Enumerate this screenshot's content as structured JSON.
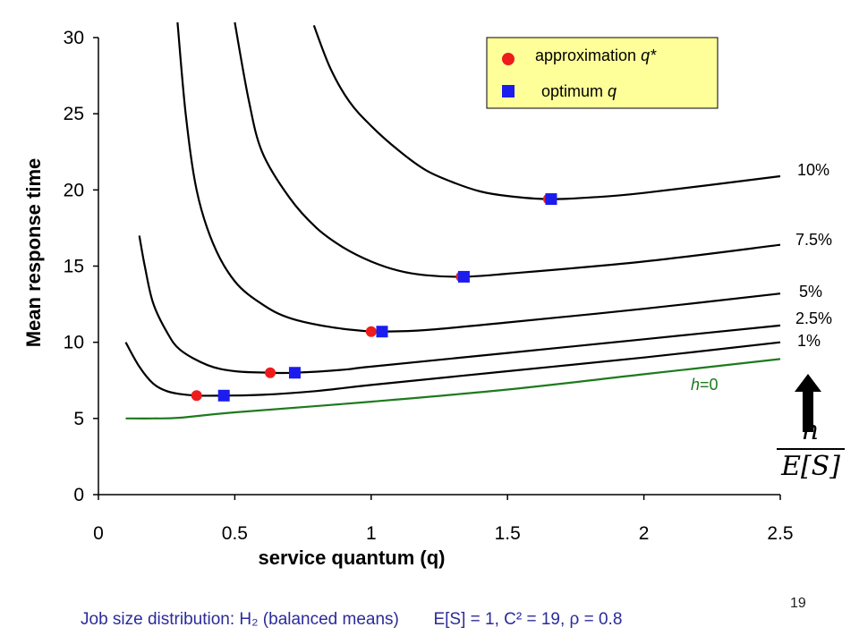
{
  "chart_data": {
    "type": "line",
    "xlabel": "service quantum (q)",
    "ylabel": "Mean response time",
    "xlim": [
      0,
      2.5
    ],
    "ylim": [
      0,
      30
    ],
    "xticks": [
      "0",
      "0.5",
      "1",
      "1.5",
      "2",
      "2.5"
    ],
    "yticks": [
      "0",
      "5",
      "10",
      "15",
      "20",
      "25",
      "30"
    ],
    "grid": false,
    "legend_position": "top-right",
    "legend": [
      "approximation q*",
      "optimum q"
    ],
    "series": [
      {
        "name": "h=0",
        "color": "#1e7a1e",
        "x": [
          0.1,
          0.2,
          0.3,
          0.5,
          1.0,
          1.5,
          2.0,
          2.5
        ],
        "y": [
          5.0,
          5.0,
          5.05,
          5.4,
          6.1,
          6.9,
          7.9,
          8.9
        ]
      },
      {
        "name": "1%",
        "color": "#000000",
        "x": [
          0.1,
          0.15,
          0.2,
          0.25,
          0.3,
          0.36,
          0.46,
          0.6,
          0.8,
          1.0,
          1.5,
          2.0,
          2.5
        ],
        "y": [
          10.0,
          8.4,
          7.3,
          6.8,
          6.6,
          6.5,
          6.5,
          6.55,
          6.8,
          7.2,
          8.1,
          9.0,
          10.0
        ]
      },
      {
        "name": "2.5%",
        "color": "#000000",
        "x": [
          0.15,
          0.17,
          0.2,
          0.25,
          0.3,
          0.4,
          0.5,
          0.63,
          0.72,
          0.9,
          1.0,
          1.5,
          2.0,
          2.5
        ],
        "y": [
          17.0,
          15.0,
          12.6,
          10.7,
          9.5,
          8.5,
          8.1,
          8.0,
          8.0,
          8.2,
          8.4,
          9.3,
          10.2,
          11.1
        ]
      },
      {
        "name": "5%",
        "color": "#000000",
        "x": [
          0.29,
          0.32,
          0.36,
          0.42,
          0.5,
          0.6,
          0.7,
          0.85,
          1.0,
          1.04,
          1.2,
          1.5,
          2.0,
          2.5
        ],
        "y": [
          31.0,
          25.0,
          20.0,
          16.5,
          14.0,
          12.5,
          11.6,
          11.0,
          10.7,
          10.7,
          10.8,
          11.3,
          12.2,
          13.2
        ]
      },
      {
        "name": "7.5%",
        "color": "#000000",
        "x": [
          0.5,
          0.55,
          0.6,
          0.7,
          0.8,
          0.9,
          1.0,
          1.1,
          1.2,
          1.34,
          1.5,
          2.0,
          2.5
        ],
        "y": [
          31.0,
          26.0,
          22.5,
          19.5,
          17.5,
          16.2,
          15.3,
          14.7,
          14.4,
          14.3,
          14.5,
          15.3,
          16.4
        ]
      },
      {
        "name": "10%",
        "color": "#000000",
        "x": [
          0.79,
          0.85,
          0.92,
          1.0,
          1.1,
          1.2,
          1.3,
          1.4,
          1.5,
          1.65,
          1.8,
          2.0,
          2.5
        ],
        "y": [
          30.8,
          28.0,
          25.8,
          24.2,
          22.6,
          21.3,
          20.5,
          19.9,
          19.6,
          19.4,
          19.5,
          19.8,
          20.9
        ]
      }
    ],
    "approximation_points": [
      {
        "curve": "1%",
        "x": 0.36,
        "y": 6.5
      },
      {
        "curve": "2.5%",
        "x": 0.63,
        "y": 8.0
      },
      {
        "curve": "5%",
        "x": 1.0,
        "y": 10.7
      },
      {
        "curve": "7.5%",
        "x": 1.33,
        "y": 14.3
      },
      {
        "curve": "10%",
        "x": 1.65,
        "y": 19.4
      }
    ],
    "optimum_points": [
      {
        "curve": "1%",
        "x": 0.46,
        "y": 6.5
      },
      {
        "curve": "2.5%",
        "x": 0.72,
        "y": 8.0
      },
      {
        "curve": "5%",
        "x": 1.04,
        "y": 10.7
      },
      {
        "curve": "7.5%",
        "x": 1.34,
        "y": 14.3
      },
      {
        "curve": "10%",
        "x": 1.66,
        "y": 19.4
      }
    ],
    "colors": {
      "approximation": "#ee1c1c",
      "optimum": "#1c1cee",
      "legend_bg": "#ffff99",
      "h0": "#1e7a1e"
    },
    "curve_labels": [
      "10%",
      "7.5%",
      "5%",
      "2.5%",
      "1%"
    ],
    "annotation_arrow": "up-arrow",
    "annotation_formula": {
      "numerator": "h",
      "denominator": "E[S]"
    }
  },
  "footer": {
    "distribution": "Job size distribution: H₂ (balanced means)",
    "params": "E[S] = 1, C² = 19, ρ = 0.8"
  },
  "page_number": "19"
}
